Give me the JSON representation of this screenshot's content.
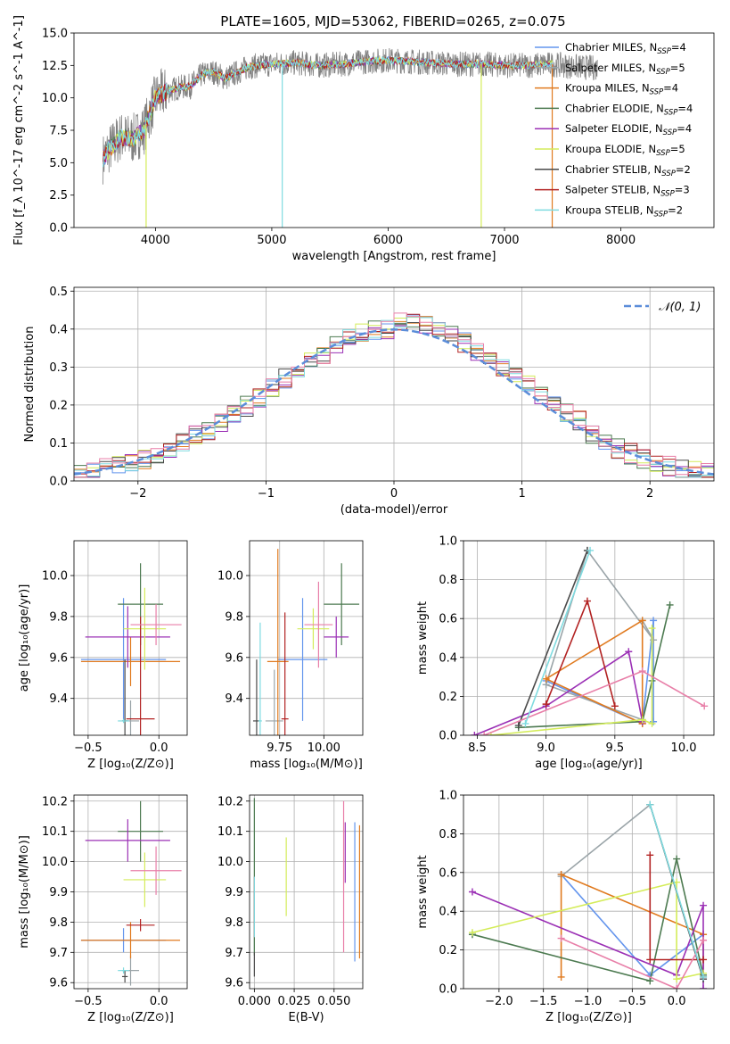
{
  "title": "PLATE=1605, MJD=53062, FIBERID=0265, z=0.075",
  "colors": {
    "chabrier_miles": "#6495ed",
    "salpeter_miles": "#9aa4a8",
    "kroupa_miles": "#e07a1f",
    "chabrier_elodie": "#4c7a50",
    "salpeter_elodie": "#9b30b5",
    "kroupa_elodie": "#d4ec5a",
    "chabrier_stelib": "#4a4a4a",
    "salpeter_stelib": "#b22222",
    "kroupa_stelib": "#7fdbe0",
    "data": "#808080",
    "normal_curve": "#5b8dd9",
    "pink": "#e87fa8"
  },
  "chart_data": [
    {
      "id": "spectrum",
      "type": "line",
      "title": "PLATE=1605, MJD=53062, FIBERID=0265, z=0.075",
      "xlabel": "wavelength [Angstrom, rest frame]",
      "ylabel": "Flux [f_λ 10^-17 erg cm^-2 s^-1 A^-1]",
      "xlim": [
        3300,
        8800
      ],
      "ylim": [
        0,
        15
      ],
      "xticks": [
        "4000",
        "5000",
        "6000",
        "7000",
        "8000"
      ],
      "yticks": [
        "0.0",
        "2.5",
        "5.0",
        "7.5",
        "10.0",
        "12.5",
        "15.0"
      ],
      "legend_position": "right",
      "legend": [
        {
          "label": "Chabrier MILES, N",
          "sub": "SSP",
          "tail": "=4",
          "color": "#6495ed"
        },
        {
          "label": "Salpeter MILES, N",
          "sub": "SSP",
          "tail": "=5",
          "color": "#9aa4a8"
        },
        {
          "label": "Kroupa MILES, N",
          "sub": "SSP",
          "tail": "=4",
          "color": "#e07a1f"
        },
        {
          "label": "Chabrier ELODIE, N",
          "sub": "SSP",
          "tail": "=4",
          "color": "#4c7a50"
        },
        {
          "label": "Salpeter ELODIE, N",
          "sub": "SSP",
          "tail": "=4",
          "color": "#9b30b5"
        },
        {
          "label": "Kroupa ELODIE, N",
          "sub": "SSP",
          "tail": "=5",
          "color": "#d4ec5a"
        },
        {
          "label": "Chabrier STELIB, N",
          "sub": "SSP",
          "tail": "=2",
          "color": "#4a4a4a"
        },
        {
          "label": "Salpeter STELIB, N",
          "sub": "SSP",
          "tail": "=3",
          "color": "#b22222"
        },
        {
          "label": "Kroupa STELIB, N",
          "sub": "SSP",
          "tail": "=2",
          "color": "#7fdbe0"
        }
      ],
      "envelope": {
        "x": [
          3550,
          3600,
          3700,
          3800,
          3900,
          4000,
          4100,
          4200,
          4300,
          4400,
          4500,
          4600,
          4800,
          5000,
          5200,
          5400,
          5600,
          5800,
          6000,
          6200,
          6400,
          6600,
          6800,
          7000,
          7200,
          7400,
          7600,
          7800
        ],
        "y": [
          5.3,
          6.0,
          7.0,
          6.8,
          7.5,
          10.0,
          10.5,
          10.8,
          10.9,
          11.8,
          12.0,
          11.5,
          12.4,
          12.6,
          12.7,
          12.5,
          12.6,
          12.8,
          12.9,
          12.8,
          12.7,
          12.6,
          12.6,
          12.5,
          12.5,
          12.6,
          12.4,
          12.3
        ],
        "noise": 0.9
      },
      "spikes": [
        {
          "x": 3920,
          "to": 0,
          "color": "#d4ec5a"
        },
        {
          "x": 5090,
          "to": 0,
          "color": "#7fdbe0"
        },
        {
          "x": 6800,
          "to": 0,
          "color": "#d4ec5a"
        },
        {
          "x": 7410,
          "to": 0,
          "color": "#e07a1f"
        }
      ]
    },
    {
      "id": "residuals",
      "type": "histogram",
      "xlabel": "(data-model)/error",
      "ylabel": "Normed distribution",
      "xlim": [
        -2.5,
        2.5
      ],
      "ylim": [
        0,
        0.51
      ],
      "xticks": [
        "−2",
        "−1",
        "0",
        "1",
        "2"
      ],
      "yticks": [
        "0.0",
        "0.1",
        "0.2",
        "0.3",
        "0.4",
        "0.5"
      ],
      "legend": [
        {
          "label": "𝒩(0, 1)",
          "color": "#5b8dd9"
        }
      ],
      "legend_position": "upper right",
      "bin_width": 0.1
    },
    {
      "id": "age_vs_Z",
      "type": "scatter",
      "xlabel": "Z [log₁₀(Z/Z⊙)]",
      "ylabel": "age  [log₁₀(age/yr)]",
      "xlim": [
        -0.6,
        0.2
      ],
      "ylim": [
        9.22,
        10.17
      ],
      "xticks": [
        "−0.5",
        "0.0"
      ],
      "yticks": [
        "9.4",
        "9.6",
        "9.8",
        "10.0"
      ],
      "points": [
        {
          "x": -0.25,
          "y": 9.59,
          "xerr": 0.3,
          "yerr": 0.3,
          "color": "#6495ed"
        },
        {
          "x": -0.2,
          "y": 9.29,
          "xerr": 0.06,
          "yerr": 0.1,
          "color": "#9aa4a8"
        },
        {
          "x": -0.2,
          "y": 9.58,
          "xerr": 0.35,
          "yerr": 0.12,
          "color": "#e07a1f"
        },
        {
          "x": -0.13,
          "y": 9.86,
          "xerr": 0.16,
          "yerr": 0.2,
          "color": "#4c7a50"
        },
        {
          "x": -0.22,
          "y": 9.7,
          "xerr": 0.3,
          "yerr": 0.15,
          "color": "#9b30b5"
        },
        {
          "x": -0.1,
          "y": 9.74,
          "xerr": 0.15,
          "yerr": 0.2,
          "color": "#d4ec5a"
        },
        {
          "x": -0.24,
          "y": 9.29,
          "xerr": 0.02,
          "yerr": 0.3,
          "color": "#4a4a4a"
        },
        {
          "x": -0.13,
          "y": 9.3,
          "xerr": 0.1,
          "yerr": 0.5,
          "color": "#b22222"
        },
        {
          "x": -0.02,
          "y": 9.76,
          "xerr": 0.18,
          "yerr": 0.1,
          "color": "#e87fa8"
        },
        {
          "x": -0.25,
          "y": 9.29,
          "xerr": 0.04,
          "yerr": 0.01,
          "color": "#7fdbe0"
        }
      ]
    },
    {
      "id": "age_vs_mass",
      "type": "scatter",
      "xlabel": "mass [log₁₀(M/M⊙)]",
      "ylabel": "",
      "xlim": [
        9.58,
        10.22
      ],
      "ylim": [
        9.22,
        10.17
      ],
      "xticks": [
        "9.75",
        "10.00"
      ],
      "yticks": [
        "9.4",
        "9.6",
        "9.8",
        "10.0"
      ],
      "points": [
        {
          "x": 9.88,
          "y": 9.59,
          "xerr": 0.14,
          "yerr": 0.3,
          "color": "#6495ed"
        },
        {
          "x": 9.72,
          "y": 9.29,
          "xerr": 0.05,
          "yerr": 0.25,
          "color": "#9aa4a8"
        },
        {
          "x": 9.74,
          "y": 9.58,
          "xerr": 0.06,
          "yerr": 0.55,
          "color": "#e07a1f"
        },
        {
          "x": 10.1,
          "y": 9.86,
          "xerr": 0.1,
          "yerr": 0.2,
          "color": "#4c7a50"
        },
        {
          "x": 10.07,
          "y": 9.7,
          "xerr": 0.07,
          "yerr": 0.1,
          "color": "#9b30b5"
        },
        {
          "x": 9.94,
          "y": 9.74,
          "xerr": 0.09,
          "yerr": 0.1,
          "color": "#d4ec5a"
        },
        {
          "x": 9.62,
          "y": 9.29,
          "xerr": 0.02,
          "yerr": 0.3,
          "color": "#4a4a4a"
        },
        {
          "x": 9.78,
          "y": 9.3,
          "xerr": 0.02,
          "yerr": 0.52,
          "color": "#b22222"
        },
        {
          "x": 9.97,
          "y": 9.76,
          "xerr": 0.08,
          "yerr": 0.21,
          "color": "#e87fa8"
        },
        {
          "x": 9.64,
          "y": 9.29,
          "xerr": 0.01,
          "yerr": 0.48,
          "color": "#7fdbe0"
        }
      ]
    },
    {
      "id": "massweight_vs_age",
      "type": "line",
      "xlabel": "age  [log₁₀(age/yr)]",
      "ylabel": "mass weight",
      "xlim": [
        8.4,
        10.22
      ],
      "ylim": [
        0,
        1
      ],
      "xticks": [
        "8.5",
        "9.0",
        "9.5",
        "10.0"
      ],
      "yticks": [
        "0.0",
        "0.2",
        "0.4",
        "0.6",
        "0.8",
        "1.0"
      ],
      "series": [
        {
          "color": "#6495ed",
          "x": [
            9.0,
            9.7,
            9.78,
            9.78
          ],
          "y": [
            0.28,
            0.06,
            0.59,
            0.07
          ]
        },
        {
          "color": "#9aa4a8",
          "x": [
            9.7,
            9.78,
            9.3,
            9.0,
            9.7
          ],
          "y": [
            0.59,
            0.49,
            0.95,
            0.26,
            0.08
          ]
        },
        {
          "color": "#e07a1f",
          "x": [
            9.7,
            9.0,
            9.7,
            9.7
          ],
          "y": [
            0.06,
            0.29,
            0.59,
            0.06
          ]
        },
        {
          "color": "#4c7a50",
          "x": [
            8.8,
            9.7,
            9.77,
            9.9
          ],
          "y": [
            0.04,
            0.07,
            0.28,
            0.67
          ]
        },
        {
          "color": "#9b30b5",
          "x": [
            8.48,
            9.0,
            9.6,
            9.7
          ],
          "y": [
            0.0,
            0.15,
            0.43,
            0.07
          ]
        },
        {
          "color": "#d4ec5a",
          "x": [
            8.6,
            9.7,
            9.77,
            9.77
          ],
          "y": [
            0.0,
            0.08,
            0.06,
            0.55
          ]
        },
        {
          "color": "#4a4a4a",
          "x": [
            8.8,
            9.3
          ],
          "y": [
            0.05,
            0.95
          ]
        },
        {
          "color": "#b22222",
          "x": [
            9.0,
            9.3,
            9.5
          ],
          "y": [
            0.16,
            0.69,
            0.15
          ]
        },
        {
          "color": "#e87fa8",
          "x": [
            8.55,
            9.7,
            10.15
          ],
          "y": [
            0.0,
            0.33,
            0.15
          ]
        },
        {
          "color": "#7fdbe0",
          "x": [
            8.85,
            9.32
          ],
          "y": [
            0.06,
            0.95
          ]
        }
      ]
    },
    {
      "id": "mass_vs_Z",
      "type": "scatter",
      "xlabel": "Z [log₁₀(Z/Z⊙)]",
      "ylabel": "mass [log₁₀(M/M⊙)]",
      "xlim": [
        -0.6,
        0.2
      ],
      "ylim": [
        9.58,
        10.22
      ],
      "xticks": [
        "−0.5",
        "0.0"
      ],
      "yticks": [
        "9.6",
        "9.7",
        "9.8",
        "9.9",
        "10.0",
        "10.1",
        "10.2"
      ],
      "points": [
        {
          "x": -0.25,
          "y": 9.74,
          "xerr": 0.3,
          "yerr": 0.04,
          "color": "#6495ed"
        },
        {
          "x": -0.2,
          "y": 9.64,
          "xerr": 0.06,
          "yerr": 0.05,
          "color": "#9aa4a8"
        },
        {
          "x": -0.2,
          "y": 9.74,
          "xerr": 0.35,
          "yerr": 0.06,
          "color": "#e07a1f"
        },
        {
          "x": -0.13,
          "y": 10.1,
          "xerr": 0.16,
          "yerr": 0.1,
          "color": "#4c7a50"
        },
        {
          "x": -0.22,
          "y": 10.07,
          "xerr": 0.3,
          "yerr": 0.07,
          "color": "#9b30b5"
        },
        {
          "x": -0.1,
          "y": 9.94,
          "xerr": 0.15,
          "yerr": 0.09,
          "color": "#d4ec5a"
        },
        {
          "x": -0.24,
          "y": 9.62,
          "xerr": 0.02,
          "yerr": 0.02,
          "color": "#4a4a4a"
        },
        {
          "x": -0.13,
          "y": 9.79,
          "xerr": 0.1,
          "yerr": 0.02,
          "color": "#b22222"
        },
        {
          "x": -0.02,
          "y": 9.97,
          "xerr": 0.18,
          "yerr": 0.08,
          "color": "#e87fa8"
        },
        {
          "x": -0.25,
          "y": 9.64,
          "xerr": 0.04,
          "yerr": 0.01,
          "color": "#7fdbe0"
        }
      ]
    },
    {
      "id": "mass_vs_ebv",
      "type": "scatter",
      "xlabel": "E(B-V)",
      "ylabel": "",
      "xlim": [
        -0.003,
        0.068
      ],
      "ylim": [
        9.58,
        10.22
      ],
      "xticks": [
        "0.000",
        "0.025",
        "0.050"
      ],
      "yticks": [
        "9.6",
        "9.7",
        "9.8",
        "9.9",
        "10.0",
        "10.1",
        "10.2"
      ],
      "points": [
        {
          "x": 0.063,
          "y": 9.9,
          "xerr": 0,
          "yerr": 0.23,
          "color": "#6495ed"
        },
        {
          "x": 0.0,
          "y": 9.8,
          "xerr": 0,
          "yerr": 0.1,
          "color": "#9aa4a8"
        },
        {
          "x": 0.066,
          "y": 9.9,
          "xerr": 0,
          "yerr": 0.22,
          "color": "#e07a1f"
        },
        {
          "x": 0.0,
          "y": 9.95,
          "xerr": 0,
          "yerr": 0.26,
          "color": "#4c7a50"
        },
        {
          "x": 0.057,
          "y": 10.03,
          "xerr": 0,
          "yerr": 0.1,
          "color": "#9b30b5"
        },
        {
          "x": 0.02,
          "y": 9.95,
          "xerr": 0,
          "yerr": 0.13,
          "color": "#d4ec5a"
        },
        {
          "x": 0.0,
          "y": 9.66,
          "xerr": 0,
          "yerr": 0.04,
          "color": "#4a4a4a"
        },
        {
          "x": 0.0,
          "y": 9.85,
          "xerr": 0,
          "yerr": 0.1,
          "color": "#b22222"
        },
        {
          "x": 0.056,
          "y": 9.95,
          "xerr": 0,
          "yerr": 0.25,
          "color": "#e87fa8"
        },
        {
          "x": 0.0,
          "y": 9.85,
          "xerr": 0,
          "yerr": 0.1,
          "color": "#7fdbe0"
        }
      ]
    },
    {
      "id": "massweight_vs_Z",
      "type": "line",
      "xlabel": "Z [log₁₀(Z/Z⊙)]",
      "ylabel": "mass weight",
      "xlim": [
        -2.4,
        0.42
      ],
      "ylim": [
        0,
        1
      ],
      "xticks": [
        "−2.0",
        "−1.5",
        "−1.0",
        "−0.5",
        "0.0"
      ],
      "yticks": [
        "0.0",
        "0.2",
        "0.4",
        "0.6",
        "0.8",
        "1.0"
      ],
      "series": [
        {
          "color": "#6495ed",
          "x": [
            -1.3,
            -0.3,
            0.3,
            0.3
          ],
          "y": [
            0.59,
            0.07,
            0.28,
            0.06
          ]
        },
        {
          "color": "#9aa4a8",
          "x": [
            -1.3,
            -0.3,
            0.3
          ],
          "y": [
            0.58,
            0.95,
            0.05
          ]
        },
        {
          "color": "#e07a1f",
          "x": [
            -1.3,
            -1.3,
            0.3,
            0.3
          ],
          "y": [
            0.06,
            0.59,
            0.28,
            0.06
          ]
        },
        {
          "color": "#4c7a50",
          "x": [
            -2.3,
            -0.3,
            0.0,
            0.3
          ],
          "y": [
            0.28,
            0.04,
            0.67,
            0.07
          ]
        },
        {
          "color": "#9b30b5",
          "x": [
            -2.3,
            0.0,
            0.3,
            0.3
          ],
          "y": [
            0.5,
            0.07,
            0.43,
            0.0
          ]
        },
        {
          "color": "#d4ec5a",
          "x": [
            -2.3,
            0.0,
            0.0,
            0.3
          ],
          "y": [
            0.29,
            0.55,
            0.05,
            0.08
          ]
        },
        {
          "color": "#4a4a4a",
          "x": [
            -0.3,
            0.3
          ],
          "y": [
            0.95,
            0.05
          ]
        },
        {
          "color": "#b22222",
          "x": [
            -0.3,
            -0.3,
            0.3
          ],
          "y": [
            0.69,
            0.15,
            0.15
          ]
        },
        {
          "color": "#e87fa8",
          "x": [
            -1.3,
            0.0,
            0.3
          ],
          "y": [
            0.26,
            0.0,
            0.25
          ]
        },
        {
          "color": "#7fdbe0",
          "x": [
            -0.3,
            0.3
          ],
          "y": [
            0.95,
            0.06
          ]
        }
      ]
    }
  ]
}
